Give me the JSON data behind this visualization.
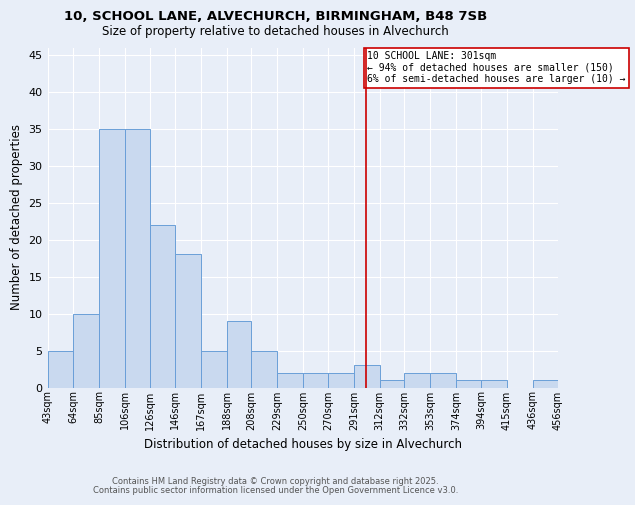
{
  "title1": "10, SCHOOL LANE, ALVECHURCH, BIRMINGHAM, B48 7SB",
  "title2": "Size of property relative to detached houses in Alvechurch",
  "xlabel": "Distribution of detached houses by size in Alvechurch",
  "ylabel": "Number of detached properties",
  "bar_values": [
    5,
    10,
    35,
    35,
    22,
    18,
    5,
    9,
    5,
    2,
    2,
    2,
    3,
    1,
    2,
    2,
    1,
    1,
    0,
    1
  ],
  "bin_labels": [
    "43sqm",
    "64sqm",
    "85sqm",
    "106sqm",
    "126sqm",
    "146sqm",
    "167sqm",
    "188sqm",
    "208sqm",
    "229sqm",
    "250sqm",
    "270sqm",
    "291sqm",
    "312sqm",
    "332sqm",
    "353sqm",
    "374sqm",
    "394sqm",
    "415sqm",
    "436sqm",
    "456sqm"
  ],
  "bin_edges": [
    43,
    64,
    85,
    106,
    126,
    146,
    167,
    188,
    208,
    229,
    250,
    270,
    291,
    312,
    332,
    353,
    374,
    394,
    415,
    436,
    456
  ],
  "bar_color": "#c9d9ef",
  "bar_edge_color": "#6a9fd8",
  "vline_x": 301,
  "vline_color": "#cc0000",
  "annotation_text": "10 SCHOOL LANE: 301sqm\n← 94% of detached houses are smaller (150)\n6% of semi-detached houses are larger (10) →",
  "annotation_box_color": "#ffffff",
  "annotation_border_color": "#cc0000",
  "ylim": [
    0,
    46
  ],
  "yticks": [
    0,
    5,
    10,
    15,
    20,
    25,
    30,
    35,
    40,
    45
  ],
  "background_color": "#e8eef8",
  "grid_color": "#ffffff",
  "footer_line1": "Contains HM Land Registry data © Crown copyright and database right 2025.",
  "footer_line2": "Contains public sector information licensed under the Open Government Licence v3.0."
}
